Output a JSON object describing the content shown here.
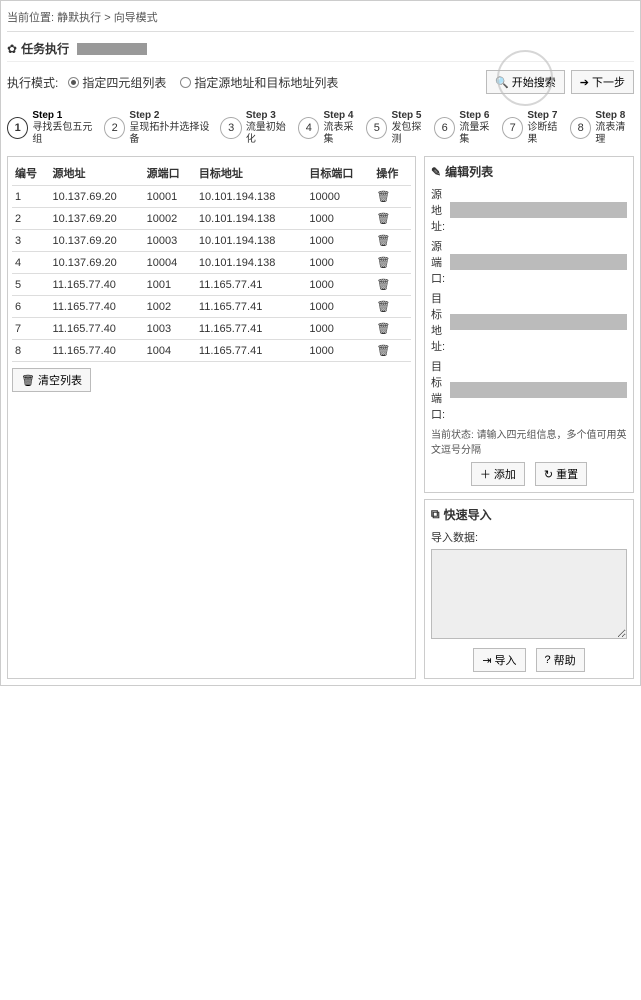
{
  "breadcrumb": {
    "loc_label": "当前位置:",
    "p1": "静默执行",
    "sep": ">",
    "p2": "向导模式"
  },
  "toolbar": {
    "title": "任务执行"
  },
  "mode": {
    "label": "执行模式:",
    "opt1": "指定四元组列表",
    "opt2": "指定源地址和目标地址列表"
  },
  "buttons": {
    "search": "开始搜索",
    "next": "下一步",
    "clear_list": "清空列表",
    "add": "添加",
    "reset": "重置",
    "import": "导入",
    "help": "帮助"
  },
  "steps": [
    {
      "num": "1",
      "t1": "Step 1",
      "t2": "寻找丢包五元组"
    },
    {
      "num": "2",
      "t1": "Step 2",
      "t2": "呈现拓扑并选择设备"
    },
    {
      "num": "3",
      "t1": "Step 3",
      "t2": "流量初始化"
    },
    {
      "num": "4",
      "t1": "Step 4",
      "t2": "流表采集"
    },
    {
      "num": "5",
      "t1": "Step 5",
      "t2": "发包探测"
    },
    {
      "num": "6",
      "t1": "Step 6",
      "t2": "流量采集"
    },
    {
      "num": "7",
      "t1": "Step 7",
      "t2": "诊断结果"
    },
    {
      "num": "8",
      "t1": "Step 8",
      "t2": "流表清理"
    }
  ],
  "table": {
    "headers": {
      "idx": "编号",
      "src_ip": "源地址",
      "src_port": "源端口",
      "dst_ip": "目标地址",
      "dst_port": "目标端口",
      "op": "操作"
    },
    "rows": [
      {
        "idx": "1",
        "src_ip": "10.137.69.20",
        "src_port": "10001",
        "dst_ip": "10.101.194.138",
        "dst_port": "10000"
      },
      {
        "idx": "2",
        "src_ip": "10.137.69.20",
        "src_port": "10002",
        "dst_ip": "10.101.194.138",
        "dst_port": "1000"
      },
      {
        "idx": "3",
        "src_ip": "10.137.69.20",
        "src_port": "10003",
        "dst_ip": "10.101.194.138",
        "dst_port": "1000"
      },
      {
        "idx": "4",
        "src_ip": "10.137.69.20",
        "src_port": "10004",
        "dst_ip": "10.101.194.138",
        "dst_port": "1000"
      },
      {
        "idx": "5",
        "src_ip": "11.165.77.40",
        "src_port": "1001",
        "dst_ip": "11.165.77.41",
        "dst_port": "1000"
      },
      {
        "idx": "6",
        "src_ip": "11.165.77.40",
        "src_port": "1002",
        "dst_ip": "11.165.77.41",
        "dst_port": "1000"
      },
      {
        "idx": "7",
        "src_ip": "11.165.77.40",
        "src_port": "1003",
        "dst_ip": "11.165.77.41",
        "dst_port": "1000"
      },
      {
        "idx": "8",
        "src_ip": "11.165.77.40",
        "src_port": "1004",
        "dst_ip": "11.165.77.41",
        "dst_port": "1000"
      }
    ]
  },
  "edit_panel": {
    "title": "编辑列表",
    "src_ip": "源地址:",
    "src_port": "源端口:",
    "dst_ip": "目标地址:",
    "dst_port": "目标端口:",
    "status_label": "当前状态:",
    "status_text": "请输入四元组信息，多个值可用英文逗号分隔"
  },
  "import_panel": {
    "title": "快速导入",
    "data_label": "导入数据:"
  }
}
